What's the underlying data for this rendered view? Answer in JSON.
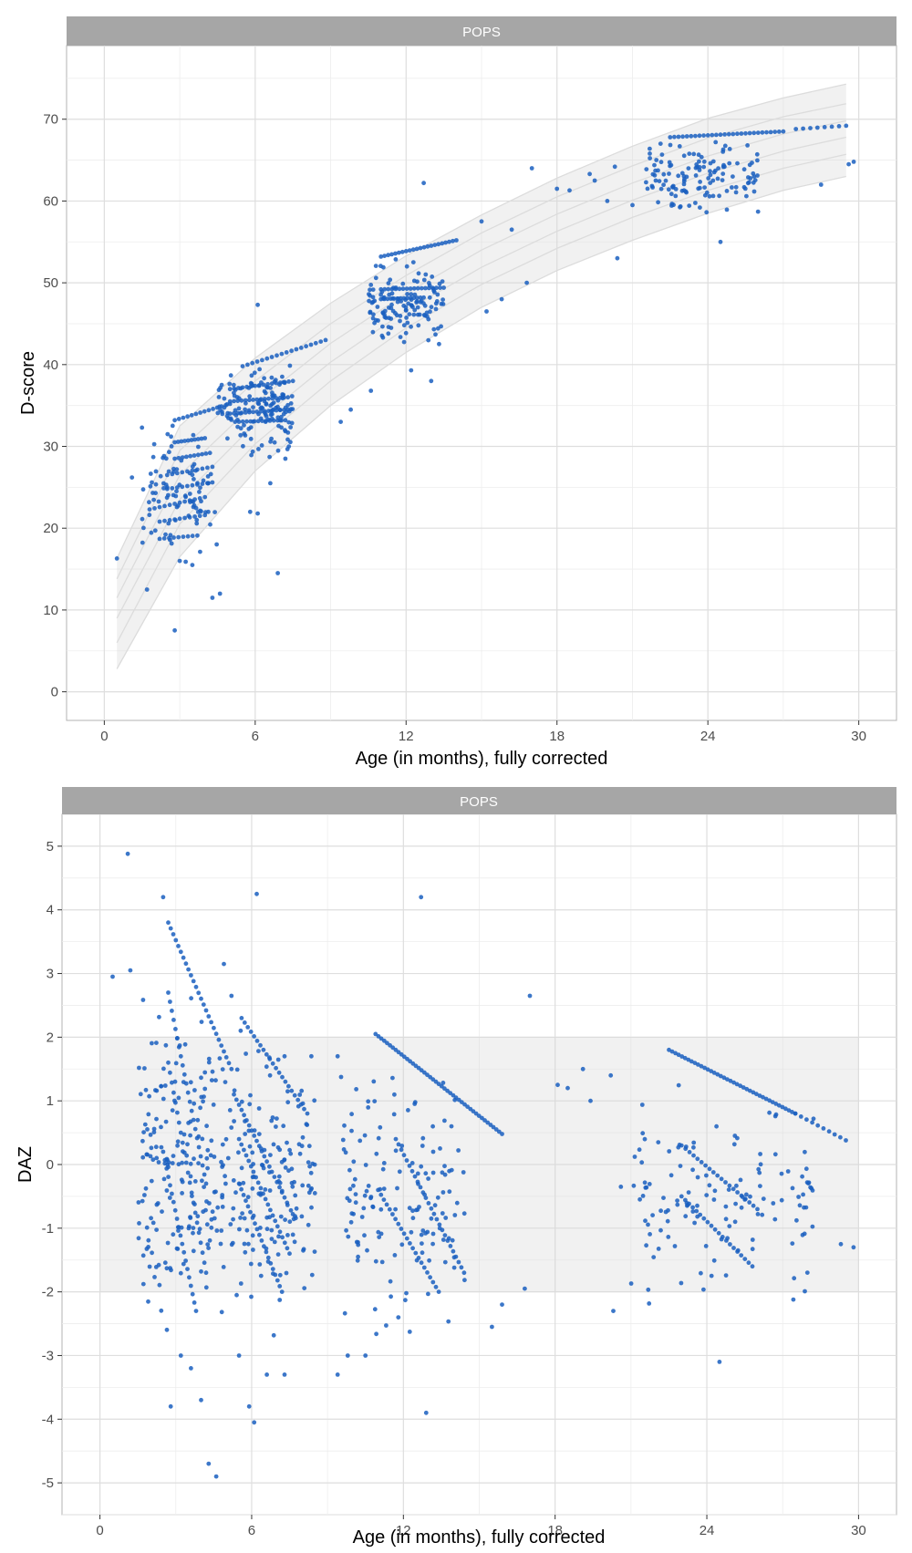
{
  "chart_data": [
    {
      "type": "scatter",
      "facet": "POPS",
      "xlabel": "Age (in months), fully corrected",
      "ylabel": "D-score",
      "xlim": [
        -1.5,
        31.5
      ],
      "ylim": [
        -3.5,
        79
      ],
      "xticks": [
        0,
        6,
        12,
        18,
        24,
        30
      ],
      "yticks": [
        0,
        10,
        20,
        30,
        40,
        50,
        60,
        70
      ],
      "grid": true,
      "point_color": "#1a5fbf",
      "reference_band": {
        "x": [
          0.5,
          3,
          6,
          9,
          12,
          15,
          18,
          21,
          24,
          27,
          29.5
        ],
        "lower": [
          2.8,
          16.5,
          27,
          35,
          41.5,
          47,
          51.5,
          55.2,
          58.5,
          61.3,
          63
        ],
        "upper": [
          16.3,
          32.5,
          40.8,
          47.5,
          53.3,
          58.3,
          62.8,
          66.7,
          70.1,
          72.6,
          74.3
        ],
        "centile_lines": [
          [
            6,
            20.5,
            30.3,
            38,
            44.5,
            49.8,
            54.2,
            58,
            61.3,
            64,
            65.7
          ],
          [
            9,
            23.5,
            32.8,
            40.3,
            46.6,
            51.9,
            56.3,
            60.1,
            63.4,
            66.1,
            67.8
          ],
          [
            11.5,
            26.5,
            35.3,
            42.6,
            48.7,
            54,
            58.4,
            62.2,
            65.5,
            68.2,
            69.8
          ],
          [
            13.8,
            29.5,
            38,
            45,
            50.9,
            56.1,
            60.5,
            64.3,
            67.7,
            70.3,
            71.9
          ]
        ]
      },
      "clusters": [
        {
          "x": [
            1.5,
            4.5
          ],
          "y": [
            15,
            33
          ],
          "n": 90
        },
        {
          "x": [
            4.5,
            7.5
          ],
          "y": [
            28,
            41
          ],
          "n": 140
        },
        {
          "x": [
            10.5,
            13.5
          ],
          "y": [
            42,
            53
          ],
          "n": 130
        },
        {
          "x": [
            21.5,
            26
          ],
          "y": [
            58,
            68
          ],
          "n": 130
        }
      ],
      "bands": [
        {
          "x": [
            2.8,
            5
          ],
          "y_start": 33.2,
          "y_end": 35.2,
          "n": 14
        },
        {
          "x": [
            2.8,
            4
          ],
          "y_start": 30.5,
          "y_end": 31,
          "n": 10
        },
        {
          "x": [
            2.8,
            4.2
          ],
          "y_start": 28.5,
          "y_end": 29.2,
          "n": 10
        },
        {
          "x": [
            2.5,
            4.3
          ],
          "y_start": 26.5,
          "y_end": 27.5,
          "n": 10
        },
        {
          "x": [
            2.5,
            4.3
          ],
          "y_start": 24.8,
          "y_end": 25.6,
          "n": 10
        },
        {
          "x": [
            1.8,
            4
          ],
          "y_start": 22.3,
          "y_end": 23.8,
          "n": 12
        },
        {
          "x": [
            2.2,
            4
          ],
          "y_start": 20.8,
          "y_end": 21.6,
          "n": 10
        },
        {
          "x": [
            2.2,
            3.7
          ],
          "y_start": 18.7,
          "y_end": 19.1,
          "n": 9
        },
        {
          "x": [
            5,
            7.5
          ],
          "y_start": 37,
          "y_end": 38,
          "n": 16
        },
        {
          "x": [
            5,
            7.3
          ],
          "y_start": 35.5,
          "y_end": 36,
          "n": 16
        },
        {
          "x": [
            5,
            7.3
          ],
          "y_start": 34,
          "y_end": 34.5,
          "n": 16
        },
        {
          "x": [
            5.2,
            7.2
          ],
          "y_start": 33,
          "y_end": 33.2,
          "n": 14
        },
        {
          "x": [
            5.5,
            8.8
          ],
          "y_start": 39.8,
          "y_end": 43,
          "n": 18
        },
        {
          "x": [
            11,
            14
          ],
          "y_start": 53.2,
          "y_end": 55.2,
          "n": 22
        },
        {
          "x": [
            11,
            13.5
          ],
          "y_start": 49.2,
          "y_end": 49.4,
          "n": 18
        },
        {
          "x": [
            11,
            12.7
          ],
          "y_start": 48,
          "y_end": 48.2,
          "n": 14
        },
        {
          "x": [
            22.5,
            27
          ],
          "y_start": 67.8,
          "y_end": 68.5,
          "n": 28
        },
        {
          "x": [
            27.5,
            29.5
          ],
          "y_start": 68.8,
          "y_end": 69.2,
          "n": 8
        }
      ],
      "points": [
        [
          0.5,
          16.3
        ],
        [
          1.1,
          26.2
        ],
        [
          1.5,
          32.3
        ],
        [
          1.7,
          12.5
        ],
        [
          2.8,
          7.5
        ],
        [
          3,
          16
        ],
        [
          3.5,
          15.5
        ],
        [
          4.3,
          11.5
        ],
        [
          4.6,
          12
        ],
        [
          6.1,
          47.3
        ],
        [
          6.9,
          14.5
        ],
        [
          5.8,
          22
        ],
        [
          6.1,
          21.8
        ],
        [
          6.6,
          25.5
        ],
        [
          7.2,
          28.5
        ],
        [
          9.4,
          33
        ],
        [
          9.8,
          34.5
        ],
        [
          10.6,
          36.8
        ],
        [
          12.2,
          39.3
        ],
        [
          12.7,
          62.2
        ],
        [
          13,
          38
        ],
        [
          15,
          57.5
        ],
        [
          15.2,
          46.5
        ],
        [
          15.8,
          48
        ],
        [
          16.2,
          56.5
        ],
        [
          16.8,
          50
        ],
        [
          17,
          64
        ],
        [
          18,
          61.5
        ],
        [
          18.5,
          61.3
        ],
        [
          19.3,
          63.3
        ],
        [
          19.5,
          62.5
        ],
        [
          20,
          60
        ],
        [
          20.3,
          64.2
        ],
        [
          20.4,
          53
        ],
        [
          21,
          59.5
        ],
        [
          24.5,
          55
        ],
        [
          28.5,
          62
        ],
        [
          29.6,
          64.5
        ],
        [
          29.8,
          64.8
        ]
      ]
    },
    {
      "type": "scatter",
      "facet": "POPS",
      "xlabel": "Age (in months), fully corrected",
      "ylabel": "DAZ",
      "xlim": [
        -1.5,
        31.5
      ],
      "ylim": [
        -5.5,
        5.5
      ],
      "xticks": [
        0,
        6,
        12,
        18,
        24,
        30
      ],
      "yticks": [
        -5,
        -4,
        -3,
        -2,
        -1,
        0,
        1,
        2,
        3,
        4,
        5
      ],
      "grid": true,
      "point_color": "#1a5fbf",
      "reference_band": {
        "lower": -2,
        "upper": 2
      },
      "clusters": [
        {
          "x": [
            1.5,
            4.5
          ],
          "y": [
            -2.7,
            2.7
          ],
          "n": 170
        },
        {
          "x": [
            4.5,
            8.5
          ],
          "y": [
            -2.7,
            2.3
          ],
          "n": 180
        },
        {
          "x": [
            9.5,
            14.5
          ],
          "y": [
            -2.7,
            1.7
          ],
          "n": 140
        },
        {
          "x": [
            21,
            28.5
          ],
          "y": [
            -2.3,
            1.3
          ],
          "n": 130
        }
      ],
      "bands": [
        {
          "x": [
            2.7,
            5.2
          ],
          "y_start": 3.8,
          "y_end": 1.5,
          "n": 26
        },
        {
          "x": [
            2.7,
            4.2
          ],
          "y_start": 2.7,
          "y_end": -0.3,
          "n": 22
        },
        {
          "x": [
            2.7,
            4.2
          ],
          "y_start": 1.6,
          "y_end": -1.7,
          "n": 22
        },
        {
          "x": [
            2.5,
            3.8
          ],
          "y_start": 0.2,
          "y_end": -2.3,
          "n": 20
        },
        {
          "x": [
            5.6,
            8.2
          ],
          "y_start": 2.3,
          "y_end": 0.8,
          "n": 22
        },
        {
          "x": [
            5.3,
            7.4
          ],
          "y_start": 1.1,
          "y_end": -0.6,
          "n": 22
        },
        {
          "x": [
            5.5,
            7.5
          ],
          "y_start": 0.4,
          "y_end": -1.4,
          "n": 22
        },
        {
          "x": [
            5.5,
            7.2
          ],
          "y_start": -0.3,
          "y_end": -2,
          "n": 20
        },
        {
          "x": [
            10.9,
            15.9
          ],
          "y_start": 2.05,
          "y_end": 0.48,
          "n": 45
        },
        {
          "x": [
            11.7,
            14.4
          ],
          "y_start": 0.4,
          "y_end": -1.7,
          "n": 26
        },
        {
          "x": [
            11,
            13.4
          ],
          "y_start": -0.4,
          "y_end": -2,
          "n": 22
        },
        {
          "x": [
            22.5,
            27.5
          ],
          "y_start": 1.8,
          "y_end": 0.8,
          "n": 40
        },
        {
          "x": [
            27.5,
            29.5
          ],
          "y_start": 0.8,
          "y_end": 0.38,
          "n": 10
        },
        {
          "x": [
            23,
            26
          ],
          "y_start": 0.3,
          "y_end": -0.7,
          "n": 20
        },
        {
          "x": [
            23,
            25.8
          ],
          "y_start": -0.5,
          "y_end": -1.6,
          "n": 20
        }
      ],
      "points": [
        [
          0.5,
          2.95
        ],
        [
          1.1,
          4.88
        ],
        [
          1.2,
          3.05
        ],
        [
          2.5,
          4.2
        ],
        [
          2.8,
          -3.8
        ],
        [
          3.2,
          -3
        ],
        [
          3.6,
          -3.2
        ],
        [
          4,
          -3.7
        ],
        [
          4.3,
          -4.7
        ],
        [
          4.6,
          -4.9
        ],
        [
          4.9,
          3.15
        ],
        [
          5.2,
          2.65
        ],
        [
          5.5,
          -3
        ],
        [
          5.9,
          -3.8
        ],
        [
          6.1,
          -4.05
        ],
        [
          6.2,
          4.25
        ],
        [
          6.6,
          -3.3
        ],
        [
          7.3,
          -3.3
        ],
        [
          7.3,
          1.7
        ],
        [
          8.5,
          -0.45
        ],
        [
          9.4,
          -3.3
        ],
        [
          9.4,
          1.7
        ],
        [
          9.8,
          -3
        ],
        [
          10.5,
          -3
        ],
        [
          11.8,
          -2.4
        ],
        [
          12.9,
          -3.9
        ],
        [
          12.7,
          4.2
        ],
        [
          13.9,
          0.6
        ],
        [
          15.5,
          -2.55
        ],
        [
          15.9,
          -2.2
        ],
        [
          16.8,
          -1.95
        ],
        [
          17,
          2.65
        ],
        [
          18.1,
          1.25
        ],
        [
          18.5,
          1.2
        ],
        [
          19.1,
          1.5
        ],
        [
          19.4,
          1
        ],
        [
          20.2,
          1.4
        ],
        [
          20.3,
          -2.3
        ],
        [
          20.6,
          -0.35
        ],
        [
          24.5,
          -3.1
        ],
        [
          29.3,
          -1.25
        ],
        [
          29.8,
          -1.3
        ]
      ]
    }
  ]
}
